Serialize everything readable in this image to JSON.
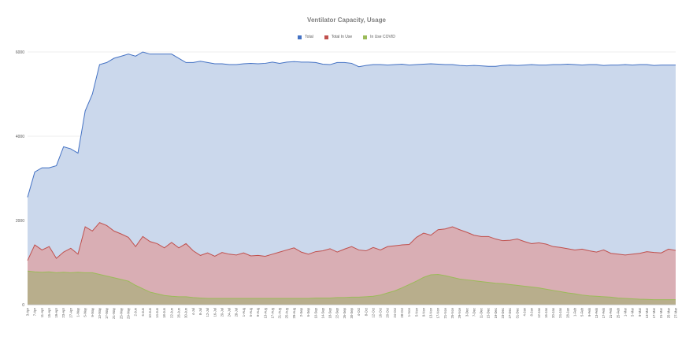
{
  "chart_data": {
    "type": "area",
    "title": "Ventilator Capacity, Usage",
    "xlabel": "",
    "ylabel": "",
    "ylim": [
      0,
      6000
    ],
    "yticks": [
      0,
      2000,
      4000,
      6000
    ],
    "grid": true,
    "legend_position": "top",
    "categories": [
      "3-Apr",
      "7-Apr",
      "11-Apr",
      "15-Apr",
      "19-Apr",
      "23-Apr",
      "27-Apr",
      "1-May",
      "5-May",
      "9-May",
      "13-May",
      "17-May",
      "21-May",
      "25-May",
      "29-May",
      "2-Jun",
      "6-Jun",
      "10-Jun",
      "14-Jun",
      "18-Jun",
      "22-Jun",
      "26-Jun",
      "30-Jun",
      "4-Jul",
      "8-Jul",
      "12-Jul",
      "16-Jul",
      "20-Jul",
      "24-Jul",
      "28-Jul",
      "1-Aug",
      "5-Aug",
      "9-Aug",
      "13-Aug",
      "17-Aug",
      "21-Aug",
      "25-Aug",
      "29-Aug",
      "2-Sep",
      "6-Sep",
      "10-Sep",
      "14-Sep",
      "18-Sep",
      "22-Sep",
      "26-Sep",
      "30-Sep",
      "4-Oct",
      "8-Oct",
      "12-Oct",
      "16-Oct",
      "20-Oct",
      "24-Oct",
      "28-Oct",
      "1-Nov",
      "5-Nov",
      "9-Nov",
      "13-Nov",
      "17-Nov",
      "21-Nov",
      "25-Nov",
      "29-Nov",
      "3-Dec",
      "7-Dec",
      "11-Dec",
      "15-Dec",
      "19-Dec",
      "23-Dec",
      "27-Dec",
      "31-Dec",
      "4-Jan",
      "8-Jan",
      "12-Jan",
      "16-Jan",
      "20-Jan",
      "24-Jan",
      "28-Jan",
      "1-Feb",
      "5-Feb",
      "9-Feb",
      "13-Feb",
      "17-Feb",
      "21-Feb",
      "25-Feb",
      "1-Mar",
      "5-Mar",
      "9-Mar",
      "13-Mar",
      "17-Mar",
      "21-Mar",
      "25-Mar",
      "27-Mar"
    ],
    "series": [
      {
        "name": "Total",
        "color": "#4472c4",
        "fill": "#cbd8ec",
        "values": [
          2550,
          3150,
          3250,
          3250,
          3300,
          3750,
          3700,
          3600,
          4600,
          5000,
          5700,
          5750,
          5850,
          5900,
          5950,
          5900,
          6000,
          5950,
          5950,
          5950,
          5950,
          5850,
          5750,
          5750,
          5780,
          5750,
          5720,
          5720,
          5700,
          5700,
          5720,
          5730,
          5720,
          5730,
          5760,
          5730,
          5760,
          5770,
          5760,
          5760,
          5750,
          5710,
          5700,
          5750,
          5750,
          5730,
          5650,
          5680,
          5700,
          5700,
          5690,
          5700,
          5710,
          5690,
          5700,
          5710,
          5720,
          5710,
          5700,
          5700,
          5680,
          5670,
          5680,
          5670,
          5660,
          5660,
          5680,
          5690,
          5680,
          5690,
          5700,
          5690,
          5690,
          5700,
          5700,
          5710,
          5700,
          5690,
          5700,
          5700,
          5680,
          5690,
          5690,
          5700,
          5690,
          5700,
          5700,
          5680,
          5690,
          5690,
          5690
        ]
      },
      {
        "name": "Total In Use",
        "color": "#c0504d",
        "fill": "#d9aeb4",
        "values": [
          1050,
          1420,
          1300,
          1380,
          1100,
          1250,
          1340,
          1200,
          1850,
          1750,
          1950,
          1880,
          1750,
          1680,
          1600,
          1380,
          1620,
          1500,
          1450,
          1350,
          1480,
          1350,
          1450,
          1280,
          1170,
          1230,
          1150,
          1240,
          1200,
          1180,
          1230,
          1160,
          1170,
          1150,
          1200,
          1250,
          1300,
          1350,
          1250,
          1200,
          1260,
          1280,
          1330,
          1250,
          1320,
          1380,
          1300,
          1280,
          1360,
          1300,
          1380,
          1400,
          1420,
          1430,
          1600,
          1700,
          1650,
          1780,
          1800,
          1850,
          1780,
          1720,
          1650,
          1620,
          1620,
          1560,
          1520,
          1530,
          1560,
          1500,
          1450,
          1470,
          1440,
          1380,
          1360,
          1330,
          1300,
          1320,
          1280,
          1250,
          1300,
          1220,
          1200,
          1180,
          1200,
          1220,
          1260,
          1240,
          1230,
          1320,
          1290
        ]
      },
      {
        "name": "In Use COVID",
        "color": "#9bbb59",
        "fill": "#b8ae8c",
        "values": [
          800,
          780,
          770,
          780,
          760,
          770,
          760,
          770,
          760,
          760,
          720,
          680,
          640,
          600,
          560,
          460,
          380,
          300,
          260,
          220,
          200,
          190,
          190,
          170,
          160,
          150,
          150,
          150,
          150,
          150,
          150,
          150,
          150,
          150,
          150,
          150,
          150,
          150,
          150,
          150,
          160,
          160,
          160,
          170,
          170,
          180,
          180,
          190,
          200,
          230,
          280,
          330,
          400,
          480,
          560,
          650,
          710,
          720,
          690,
          650,
          610,
          590,
          570,
          550,
          530,
          510,
          500,
          480,
          460,
          440,
          420,
          400,
          370,
          340,
          310,
          280,
          260,
          230,
          210,
          200,
          190,
          180,
          160,
          150,
          140,
          130,
          125,
          120,
          120,
          120,
          120
        ]
      }
    ]
  }
}
